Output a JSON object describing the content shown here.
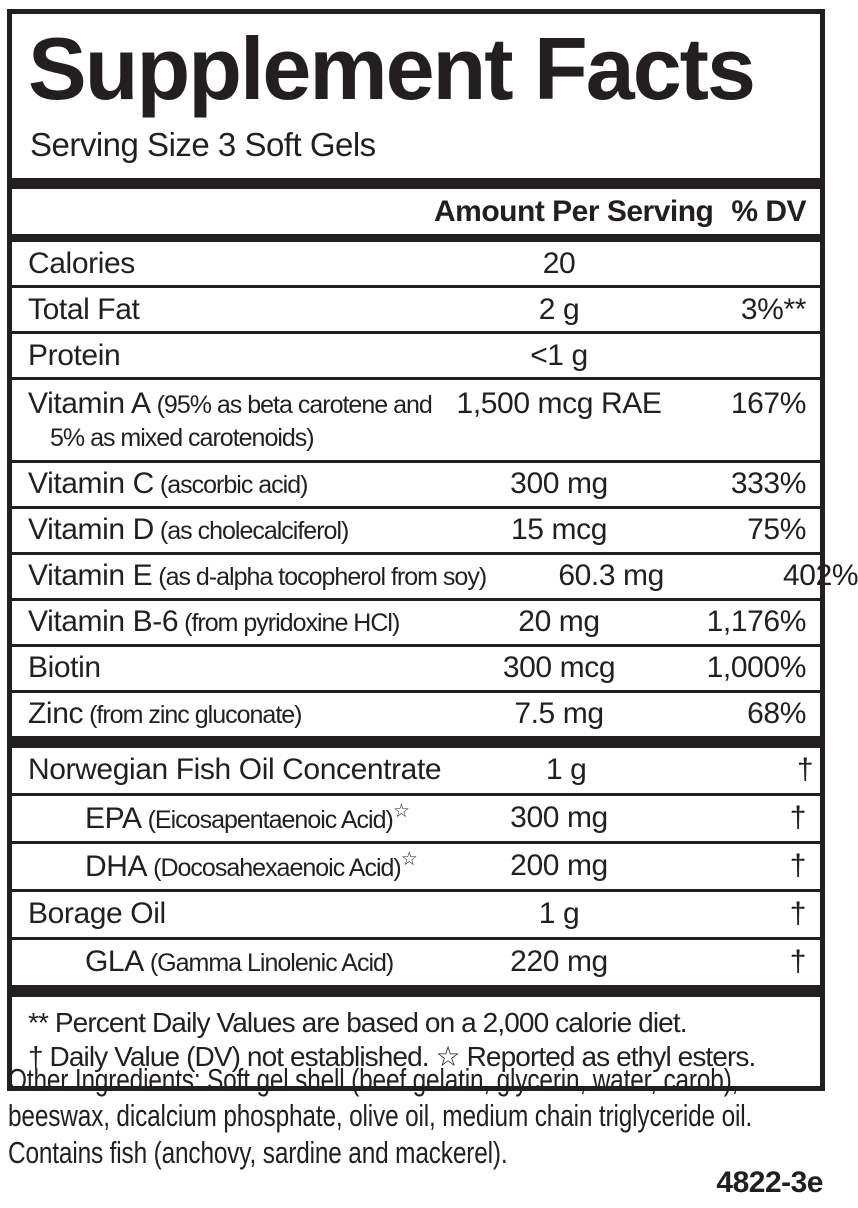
{
  "colors": {
    "ink": "#231f20",
    "background": "#ffffff"
  },
  "label": {
    "title": "Supplement Facts",
    "serving_size": "Serving Size 3 Soft Gels",
    "header": {
      "amount": "Amount Per Serving",
      "dv": "% DV"
    },
    "rows": [
      {
        "name": "Calories",
        "amount": "20",
        "dv": ""
      },
      {
        "name": "Total Fat",
        "amount": "2 g",
        "dv": "3%**"
      },
      {
        "name": "Protein",
        "amount": "<1 g",
        "dv": ""
      },
      {
        "name": "Vitamin A",
        "detail": "(95% as beta carotene and",
        "detail2": "5% as mixed carotenoids)",
        "amount": "1,500 mcg RAE",
        "dv": "167%"
      },
      {
        "name": "Vitamin C",
        "detail": "(ascorbic acid)",
        "amount": "300 mg",
        "dv": "333%"
      },
      {
        "name": "Vitamin D",
        "detail": "(as cholecalciferol)",
        "amount": "15 mcg",
        "dv": "75%"
      },
      {
        "name": "Vitamin E",
        "detail": "(as d-alpha tocopherol from soy)",
        "amount": "60.3 mg",
        "dv": "402%"
      },
      {
        "name": "Vitamin B-6",
        "detail": "(from pyridoxine HCl)",
        "amount": "20 mg",
        "dv": "1,176%"
      },
      {
        "name": "Biotin",
        "amount": "300 mcg",
        "dv": "1,000%"
      },
      {
        "name": "Zinc",
        "detail": "(from zinc gluconate)",
        "amount": "7.5 mg",
        "dv": "68%"
      },
      {
        "name": "Norwegian Fish Oil Concentrate",
        "amount": "1 g",
        "dv": "†"
      },
      {
        "name": "EPA",
        "detail": "(Eicosapentaenoic Acid)",
        "sup": "☆",
        "amount": "300 mg",
        "dv": "†"
      },
      {
        "name": "DHA",
        "detail": "(Docosahexaenoic Acid)",
        "sup": "☆",
        "amount": "200 mg",
        "dv": "†"
      },
      {
        "name": "Borage Oil",
        "amount": "1 g",
        "dv": "†"
      },
      {
        "name": "GLA",
        "detail": "(Gamma Linolenic Acid)",
        "amount": "220 mg",
        "dv": "†"
      }
    ],
    "footnotes": [
      "** Percent Daily Values are based on a 2,000 calorie diet.",
      "† Daily Value (DV) not established. ☆ Reported as ethyl esters."
    ]
  },
  "other_ingredients": "Other Ingredients: Soft gel shell (beef gelatin, glycerin, water, carob), beeswax, dicalcium phosphate, olive oil, medium chain triglyceride oil.  Contains fish (anchovy, sardine and mackerel).",
  "code": "4822-3e"
}
